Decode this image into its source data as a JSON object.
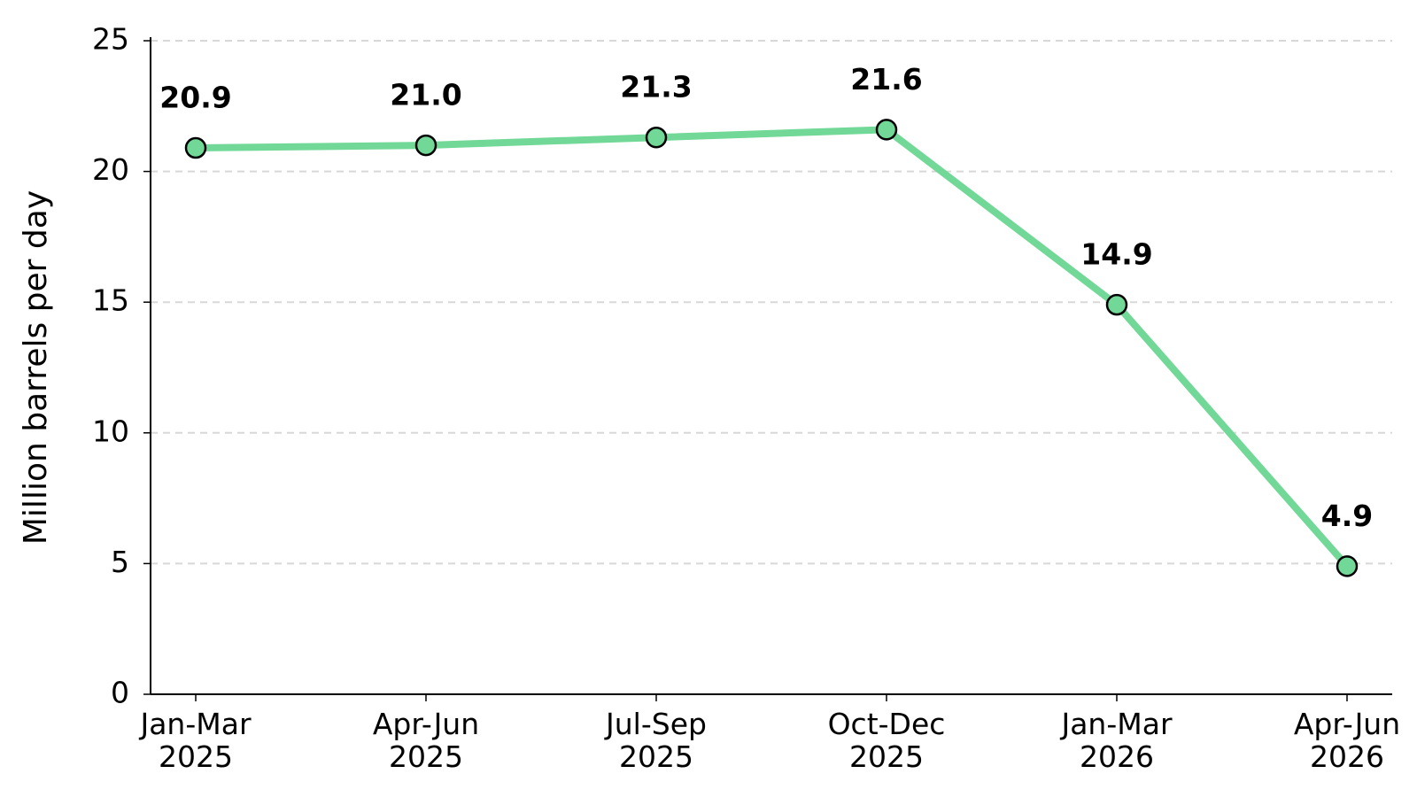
{
  "chart_data": {
    "type": "line",
    "ylabel": "Million barrels per day",
    "categories": [
      "Jan-Mar\n2025",
      "Apr-Jun\n2025",
      "Jul-Sep\n2025",
      "Oct-Dec\n2025",
      "Jan-Mar\n2026",
      "Apr-Jun\n2026"
    ],
    "values": [
      20.9,
      21.0,
      21.3,
      21.6,
      14.9,
      4.9
    ],
    "value_labels": [
      "20.9",
      "21.0",
      "21.3",
      "21.6",
      "14.9",
      "4.9"
    ],
    "color": "#72d897",
    "ylim": [
      0,
      25
    ],
    "yticks": [
      0,
      5,
      10,
      15,
      20,
      25
    ],
    "grid": true
  }
}
